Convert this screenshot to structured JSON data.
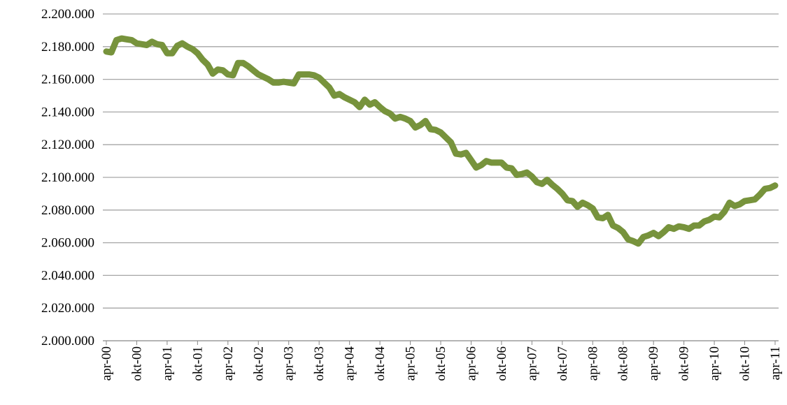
{
  "chart_data": {
    "type": "line",
    "categories": [
      "apr-00",
      null,
      null,
      null,
      null,
      null,
      "okt-00",
      null,
      null,
      null,
      null,
      null,
      "apr-01",
      null,
      null,
      null,
      null,
      null,
      "okt-01",
      null,
      null,
      null,
      null,
      null,
      "apr-02",
      null,
      null,
      null,
      null,
      null,
      "okt-02",
      null,
      null,
      null,
      null,
      null,
      "apr-03",
      null,
      null,
      null,
      null,
      null,
      "okt-03",
      null,
      null,
      null,
      null,
      null,
      "apr-04",
      null,
      null,
      null,
      null,
      null,
      "okt-04",
      null,
      null,
      null,
      null,
      null,
      "apr-05",
      null,
      null,
      null,
      null,
      null,
      "okt-05",
      null,
      null,
      null,
      null,
      null,
      "apr-06",
      null,
      null,
      null,
      null,
      null,
      "okt-06",
      null,
      null,
      null,
      null,
      null,
      "apr-07",
      null,
      null,
      null,
      null,
      null,
      "okt-07",
      null,
      null,
      null,
      null,
      null,
      "apr-08",
      null,
      null,
      null,
      null,
      null,
      "okt-08",
      null,
      null,
      null,
      null,
      null,
      "apr-09",
      null,
      null,
      null,
      null,
      null,
      "okt-09",
      null,
      null,
      null,
      null,
      null,
      "apr-10",
      null,
      null,
      null,
      null,
      null,
      "okt-10",
      null,
      null,
      null,
      null,
      null,
      "apr-11"
    ],
    "series": [
      {
        "color": "#77933c",
        "values": [
          2177000,
          2176500,
          2184000,
          2185000,
          2184500,
          2184000,
          2182000,
          2181500,
          2181000,
          2183000,
          2181500,
          2181000,
          2176000,
          2176000,
          2180500,
          2182000,
          2180000,
          2178500,
          2176000,
          2172000,
          2169000,
          2163500,
          2166000,
          2165500,
          2163000,
          2162500,
          2170000,
          2170000,
          2168000,
          2165500,
          2163000,
          2161500,
          2160000,
          2158000,
          2158000,
          2158500,
          2158000,
          2157500,
          2163000,
          2163000,
          2163000,
          2162500,
          2161000,
          2158000,
          2155000,
          2150000,
          2151000,
          2149000,
          2147500,
          2146000,
          2143000,
          2147500,
          2144500,
          2146000,
          2143000,
          2140500,
          2139000,
          2136000,
          2137000,
          2136000,
          2134500,
          2130500,
          2132000,
          2134500,
          2129500,
          2129000,
          2127500,
          2124500,
          2121500,
          2114500,
          2114000,
          2115000,
          2110500,
          2106000,
          2107500,
          2110000,
          2109000,
          2109000,
          2109000,
          2106000,
          2105500,
          2101500,
          2102000,
          2103000,
          2100500,
          2097000,
          2096000,
          2098500,
          2095500,
          2093000,
          2090000,
          2086000,
          2085500,
          2082000,
          2084500,
          2083000,
          2081000,
          2075500,
          2075000,
          2077000,
          2070500,
          2069000,
          2066500,
          2062000,
          2061000,
          2059500,
          2063500,
          2064500,
          2066000,
          2064000,
          2066500,
          2069500,
          2068500,
          2070000,
          2069500,
          2068500,
          2070500,
          2070500,
          2073000,
          2074000,
          2076000,
          2075500,
          2079000,
          2084500,
          2082500,
          2083500,
          2085500,
          2086000,
          2086500,
          2089500,
          2093000,
          2093500,
          2095000
        ]
      }
    ],
    "ylim": [
      2000000,
      2200000
    ],
    "yticks": [
      {
        "value": 2000000,
        "label": "2.000.000"
      },
      {
        "value": 2020000,
        "label": "2.020.000"
      },
      {
        "value": 2040000,
        "label": "2.040.000"
      },
      {
        "value": 2060000,
        "label": "2.060.000"
      },
      {
        "value": 2080000,
        "label": "2.080.000"
      },
      {
        "value": 2100000,
        "label": "2.100.000"
      },
      {
        "value": 2120000,
        "label": "2.120.000"
      },
      {
        "value": 2140000,
        "label": "2.140.000"
      },
      {
        "value": 2160000,
        "label": "2.160.000"
      },
      {
        "value": 2180000,
        "label": "2.180.000"
      },
      {
        "value": 2200000,
        "label": "2.200.000"
      }
    ],
    "grid": true
  }
}
